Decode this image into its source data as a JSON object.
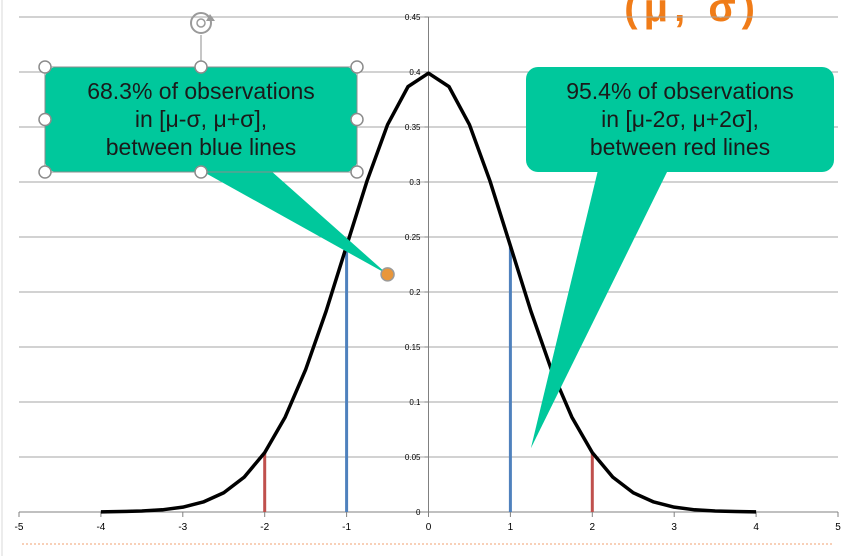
{
  "slide": {
    "title_fragment": "(μ, σ)"
  },
  "chart_data": {
    "type": "line",
    "title": "",
    "xlabel": "",
    "ylabel": "",
    "xlim": [
      -5,
      5
    ],
    "ylim": [
      0,
      0.45
    ],
    "x_ticks": [
      -5,
      -4,
      -3,
      -2,
      -1,
      0,
      1,
      2,
      3,
      4,
      5
    ],
    "x_tick_labels": [
      "-5",
      "-4",
      "-3",
      "-2",
      "-1",
      "0",
      "1",
      "2",
      "3",
      "4",
      "5"
    ],
    "y_ticks": [
      0,
      0.05,
      0.1,
      0.15,
      0.2,
      0.25,
      0.3,
      0.35,
      0.4,
      0.45
    ],
    "y_tick_labels": [
      "0",
      "0.05",
      "0.1",
      "0.15",
      "0.2",
      "0.25",
      "0.3",
      "0.35",
      "0.4",
      "0.45"
    ],
    "grid": "horizontal",
    "series": [
      {
        "color": "#000000",
        "x": [
          -4,
          -3.75,
          -3.5,
          -3.25,
          -3,
          -2.75,
          -2.5,
          -2.25,
          -2,
          -1.75,
          -1.5,
          -1.25,
          -1,
          -0.75,
          -0.5,
          -0.25,
          0,
          0.25,
          0.5,
          0.75,
          1,
          1.25,
          1.5,
          1.75,
          2,
          2.25,
          2.5,
          2.75,
          3,
          3.25,
          3.5,
          3.75,
          4
        ],
        "values": [
          0.0001,
          0.0004,
          0.0009,
          0.002,
          0.0044,
          0.0091,
          0.0175,
          0.0317,
          0.054,
          0.0863,
          0.1295,
          0.1826,
          0.242,
          0.3011,
          0.3521,
          0.3867,
          0.3989,
          0.3867,
          0.3521,
          0.3011,
          0.242,
          0.1826,
          0.1295,
          0.0863,
          0.054,
          0.0317,
          0.0175,
          0.0091,
          0.0044,
          0.002,
          0.0009,
          0.0004,
          0.0001
        ]
      }
    ],
    "vertical_lines": [
      {
        "x": -2,
        "y": 0.054,
        "color": "#c0504d"
      },
      {
        "x": -1,
        "y": 0.242,
        "color": "#4f81bd"
      },
      {
        "x": 1,
        "y": 0.242,
        "color": "#4f81bd"
      },
      {
        "x": 2,
        "y": 0.054,
        "color": "#c0504d"
      }
    ],
    "annotations": [
      {
        "text": "68.3% of observations\nin [μ-σ, μ+σ],\nbetween blue lines",
        "pointer": [
          -0.5,
          0.216
        ],
        "selected": true
      },
      {
        "text": "95.4% of observations\nin [μ-2σ, μ+2σ],\nbetween red lines",
        "pointer": [
          1.25,
          0.058
        ],
        "selected": false
      }
    ],
    "colors": {
      "curve": "#000000",
      "one_sigma_lines": "#4f81bd",
      "two_sigma_lines": "#c0504d",
      "callout_fill": "#00c89c",
      "gridline": "#a6a6a6",
      "handle_fill": "#ffffff",
      "adjust_handle": "#e8963a"
    }
  }
}
